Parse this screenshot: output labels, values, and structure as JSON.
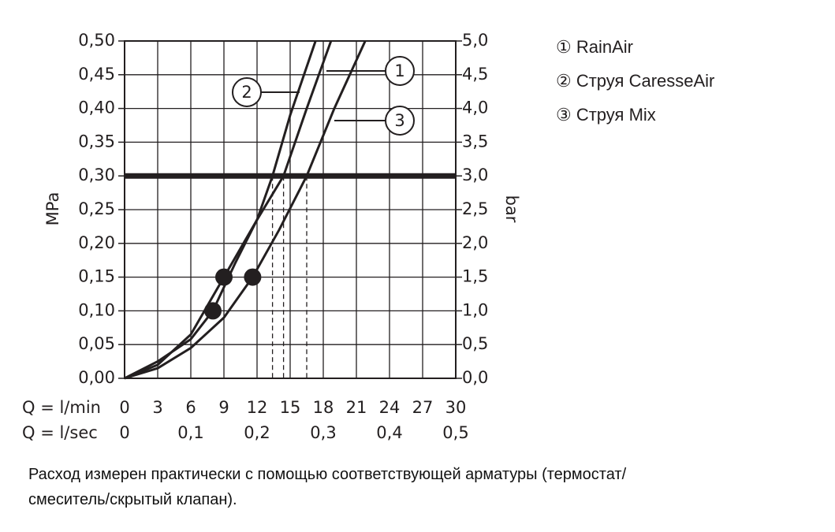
{
  "chart_data": {
    "type": "line",
    "y_label": "MPa",
    "y2_label": "bar",
    "x_label": "Q = l/min",
    "x2_label": "Q = l/sec",
    "xlim": [
      0,
      30
    ],
    "xticks": [
      0,
      3,
      6,
      9,
      12,
      15,
      18,
      21,
      24,
      27,
      30
    ],
    "x2lim": [
      0,
      0.5
    ],
    "x2ticks": [
      0,
      {
        "value": 0.1,
        "label": "0,1"
      },
      {
        "value": 0.2,
        "label": "0,2"
      },
      {
        "value": 0.3,
        "label": "0,3"
      },
      {
        "value": 0.4,
        "label": "0,4"
      },
      {
        "value": 0.5,
        "label": "0,5"
      }
    ],
    "ylim": [
      0,
      0.5
    ],
    "yticks": [
      {
        "value": 0,
        "label": "0,00"
      },
      {
        "value": 0.05,
        "label": "0,05"
      },
      {
        "value": 0.1,
        "label": "0,10"
      },
      {
        "value": 0.15,
        "label": "0,15"
      },
      {
        "value": 0.2,
        "label": "0,20"
      },
      {
        "value": 0.25,
        "label": "0,25"
      },
      {
        "value": 0.3,
        "label": "0,30"
      },
      {
        "value": 0.35,
        "label": "0,35"
      },
      {
        "value": 0.4,
        "label": "0,40"
      },
      {
        "value": 0.45,
        "label": "0,45"
      },
      {
        "value": 0.5,
        "label": "0,50"
      }
    ],
    "y2lim": [
      0,
      5
    ],
    "y2ticks": [
      {
        "value": 0,
        "label": "0,0"
      },
      {
        "value": 0.5,
        "label": "0,5"
      },
      {
        "value": 1,
        "label": "1,0"
      },
      {
        "value": 1.5,
        "label": "1,5"
      },
      {
        "value": 2,
        "label": "2,0"
      },
      {
        "value": 2.5,
        "label": "2,5"
      },
      {
        "value": 3,
        "label": "3,0"
      },
      {
        "value": 3.5,
        "label": "3,5"
      },
      {
        "value": 4,
        "label": "4,0"
      },
      {
        "value": 4.5,
        "label": "4,5"
      },
      {
        "value": 5,
        "label": "5,0"
      }
    ],
    "grid": true,
    "color": "#231f20",
    "reference_line": 0.3,
    "series": [
      {
        "name": "① RainAir",
        "callout": "1",
        "x": [
          0,
          3,
          6,
          9,
          12,
          14.4,
          16.5,
          18.7
        ],
        "values": [
          0,
          0.02,
          0.065,
          0.15,
          0.235,
          0.3,
          0.4,
          0.5
        ]
      },
      {
        "name": "② Струя CaresseAir",
        "callout": "2",
        "x": [
          0,
          3,
          6,
          8,
          10,
          12,
          13.4,
          15,
          17.3
        ],
        "values": [
          0,
          0.025,
          0.058,
          0.1,
          0.17,
          0.235,
          0.3,
          0.39,
          0.5
        ]
      },
      {
        "name": "③ Струя Mix",
        "callout": "3",
        "x": [
          0,
          3,
          6,
          9,
          11.6,
          14,
          16.5,
          19,
          21.8
        ],
        "values": [
          0,
          0.015,
          0.045,
          0.09,
          0.15,
          0.22,
          0.3,
          0.4,
          0.5
        ]
      }
    ],
    "points": [
      {
        "x": 8,
        "y": 0.1
      },
      {
        "x": 9,
        "y": 0.15
      },
      {
        "x": 11.6,
        "y": 0.15
      }
    ],
    "note_lines": [
      "Расход измерен практически с помощью соответствующей арматуры (термостат/",
      "смеситель/скрытый клапан)."
    ]
  }
}
